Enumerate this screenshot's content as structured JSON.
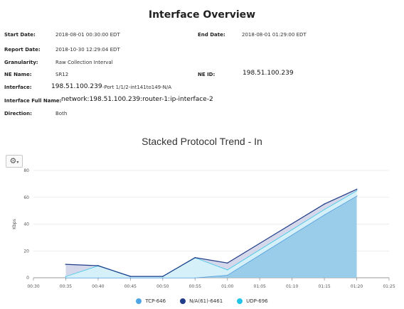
{
  "header": {
    "title": "Interface Overview"
  },
  "details": {
    "start_date_label": "Start Date:",
    "start_date": "2018-08-01 00:30:00 EDT",
    "end_date_label": "End Date:",
    "end_date": "2018-08-01 01:29:00 EDT",
    "report_date_label": "Report Date:",
    "report_date": "2018-10-30 12:29:04 EDT",
    "granularity_label": "Granularity:",
    "granularity": "Raw Collection Interval",
    "ne_name_label": "NE Name:",
    "ne_name": "SR12",
    "ne_id_label": "NE ID:",
    "ne_id": "198.51.100.239",
    "interface_label": "Interface:",
    "interface_ip": "198.51.100.239",
    "interface_port": "-Port 1/1/2-int141to149-N/A",
    "interface_full_label": "Interface Full Name:",
    "interface_full": "network:198.51.100.239:router-1:ip-interface-2",
    "direction_label": "Direction:",
    "direction": "Both"
  },
  "toolbar": {
    "settings_icon": "gear-icon"
  },
  "chart_data": {
    "type": "area",
    "stacked": true,
    "title": "Stacked Protocol Trend - In",
    "xlabel": "",
    "ylabel": "Kbps",
    "ylim": [
      0,
      80
    ],
    "xlim": [
      "00:30",
      "01:25"
    ],
    "yticks": [
      0,
      20,
      40,
      60,
      80
    ],
    "xticks": [
      "00:30",
      "00:35",
      "00:40",
      "00:45",
      "00:50",
      "00:55",
      "01:00",
      "01:05",
      "01:10",
      "01:15",
      "01:20",
      "01:25"
    ],
    "x": [
      "00:35",
      "00:40",
      "00:45",
      "00:50",
      "00:55",
      "01:00",
      "01:15",
      "01:20"
    ],
    "series": [
      {
        "name": "TCP-646",
        "color": "#8ec8e8",
        "line": "#3a8fd9",
        "values": [
          0,
          0,
          0,
          0,
          0,
          2,
          47,
          61
        ]
      },
      {
        "name": "UDP-696",
        "color": "#d2eefa",
        "line": "#22c4e8",
        "values": [
          1,
          9,
          1,
          1,
          15,
          4,
          4,
          4
        ]
      },
      {
        "name": "N/A(61)-6461",
        "color": "#cfd4e8",
        "line": "#1f3c88",
        "values": [
          9,
          0,
          0,
          0,
          0,
          5,
          4,
          1
        ]
      }
    ],
    "legend": [
      {
        "name": "TCP-646",
        "color": "#4ea6e6"
      },
      {
        "name": "N/A(61)-6461",
        "color": "#1f3c88"
      },
      {
        "name": "UDP-696",
        "color": "#22c4e8"
      }
    ],
    "grid": true,
    "legend_position": "bottom"
  }
}
